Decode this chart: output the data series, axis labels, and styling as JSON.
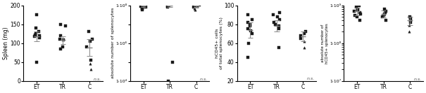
{
  "panel1": {
    "ylabel": "Spleen (mg)",
    "ylim": [
      0,
      200
    ],
    "yticks": [
      0,
      50,
      100,
      150,
      200
    ],
    "ET_dots": [
      50,
      115,
      118,
      120,
      122,
      125,
      130,
      140,
      175
    ],
    "TR_dots": [
      85,
      90,
      108,
      110,
      120,
      145,
      150
    ],
    "C_dots": [
      30,
      45,
      55,
      90,
      105,
      110,
      130
    ],
    "ET_mean": 118,
    "TR_mean": 108,
    "C_mean": 88,
    "ET_sem": 13,
    "TR_sem": 10,
    "C_sem": 22,
    "ET_markers": [
      "s",
      "s",
      "s",
      "s",
      "s",
      "s",
      "s",
      "s",
      "s"
    ],
    "TR_markers": [
      "s",
      "s",
      "s",
      "s",
      "s",
      "s",
      "s"
    ],
    "C_markers": [
      "^",
      "^",
      "s",
      "s",
      "s",
      "s",
      "s"
    ]
  },
  "panel2": {
    "ylabel": "absolute number of splenocytes",
    "log": true,
    "ylim_log": [
      10000.0,
      100000000.0
    ],
    "ytick_vals": [
      10000.0,
      100000.0,
      1000000.0,
      10000000.0,
      100000000.0
    ],
    "ytick_labels": [
      "1·10⁴",
      "",
      "1·10⁶",
      "",
      "1·10⁸"
    ],
    "ET_dots": [
      60000000.0,
      70000000.0,
      80000000.0,
      90000000.0,
      105000000.0,
      110000000.0,
      120000000.0,
      130000000.0,
      75000000.0
    ],
    "TR_dots": [
      10000.0,
      100000.0,
      80000000.0,
      90000000.0,
      100000000.0,
      110000000.0,
      120000000.0
    ],
    "C_dots": [
      60000000.0,
      70000000.0,
      80000000.0,
      90000000.0,
      100000000.0,
      105000000.0
    ],
    "ET_mean": 100000000.0,
    "TR_mean": 100000000.0,
    "C_mean": 85000000.0,
    "ET_sem": 15000000.0,
    "TR_sem": 15000000.0,
    "C_sem": 10000000.0,
    "ET_markers": [
      "s",
      "s",
      "s",
      "s",
      "s",
      "s",
      "s",
      "s",
      "s"
    ],
    "TR_markers": [
      "s",
      "s",
      "s",
      "s",
      "s",
      "s",
      "s"
    ],
    "C_markers": [
      "^",
      "^",
      "s",
      "s",
      "s",
      "s"
    ]
  },
  "panel3": {
    "ylabel": "hCD45+ cells\nof total splenocytes (%)",
    "ylim": [
      20,
      100
    ],
    "yticks": [
      20,
      40,
      60,
      80,
      100
    ],
    "ET_dots": [
      45,
      60,
      70,
      73,
      75,
      78,
      80,
      82,
      85,
      90
    ],
    "TR_dots": [
      55,
      75,
      78,
      80,
      82,
      85,
      88,
      90,
      92
    ],
    "C_dots": [
      55,
      62,
      65,
      68,
      70,
      72
    ],
    "ET_mean": 74,
    "TR_mean": 78,
    "C_mean": 67,
    "ET_sem": 8,
    "TR_sem": 6,
    "C_sem": 5,
    "ET_markers": [
      "s",
      "s",
      "s",
      "s",
      "s",
      "s",
      "s",
      "s",
      "s",
      "s"
    ],
    "TR_markers": [
      "s",
      "s",
      "s",
      "s",
      "s",
      "s",
      "s",
      "s",
      "s"
    ],
    "C_markers": [
      "^",
      "^",
      "s",
      "s",
      "s",
      "s"
    ]
  },
  "panel4": {
    "ylabel": "absolute number of\nhCD45+ splenocytes",
    "log": true,
    "ylim_log": [
      10000000.0,
      1000000000.0
    ],
    "ytick_vals": [
      10000000.0,
      100000000.0,
      1000000000.0
    ],
    "ytick_labels": [
      "1·10⁷",
      "1·10⁸",
      "1·10⁹"
    ],
    "ET_dots": [
      400000000.0,
      500000000.0,
      600000000.0,
      700000000.0,
      800000000.0,
      900000000.0,
      1000000000.0,
      550000000.0,
      650000000.0,
      750000000.0
    ],
    "TR_dots": [
      400000000.0,
      500000000.0,
      600000000.0,
      700000000.0,
      800000000.0,
      550000000.0,
      650000000.0
    ],
    "C_dots": [
      200000000.0,
      300000000.0,
      400000000.0,
      500000000.0,
      350000000.0,
      450000000.0
    ],
    "ET_mean": 700000000.0,
    "TR_mean": 600000000.0,
    "C_mean": 400000000.0,
    "ET_sem": 150000000.0,
    "TR_sem": 120000000.0,
    "C_sem": 100000000.0,
    "ET_markers": [
      "s",
      "s",
      "s",
      "s",
      "s",
      "s",
      "s",
      "s",
      "s",
      "s"
    ],
    "TR_markers": [
      "s",
      "s",
      "s",
      "s",
      "s",
      "s",
      "s"
    ],
    "C_markers": [
      "^",
      "^",
      "s",
      "s",
      "s",
      "s"
    ]
  },
  "dot_color": "#1a1a1a",
  "mean_line_color": "#888888",
  "ns_text": "n.s.",
  "group_labels": [
    "ET",
    "TR",
    "C"
  ]
}
